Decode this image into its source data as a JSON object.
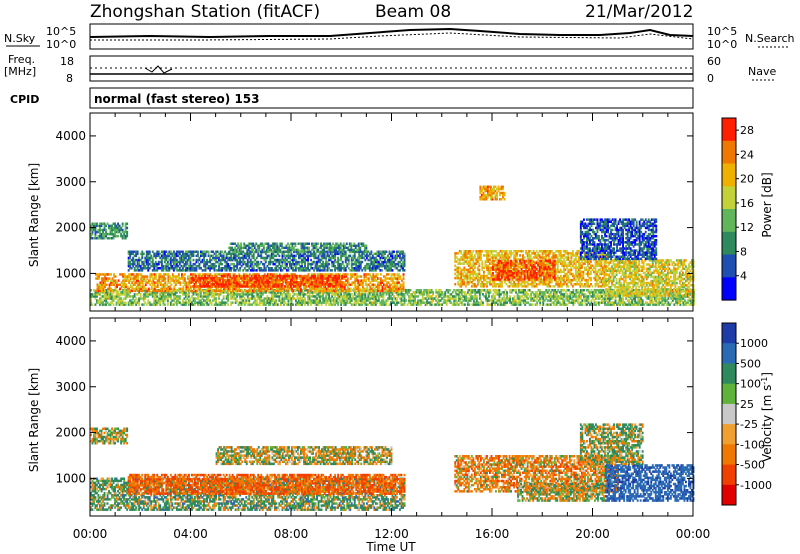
{
  "header": {
    "station": "Zhongshan Station (fitACF)",
    "beam": "Beam 08",
    "date": "21/Mar/2012"
  },
  "strip": {
    "nsky_label": "N.Sky",
    "nsearch_label": "N.Search",
    "noise_ticks_top": "10^5",
    "noise_ticks_bottom": "10^0",
    "freq_label": "Freq.",
    "freq_unit": "[MHz]",
    "freq_ticks": [
      "18",
      "8"
    ],
    "nave_label": "Nave",
    "nave_ticks": [
      "60",
      "0"
    ],
    "cpid_label": "CPID",
    "cpid_text": "normal (fast stereo) 153"
  },
  "chart_data": [
    {
      "type": "heatmap",
      "name": "power",
      "xlabel": "Time UT",
      "ylabel": "Slant Range [km]",
      "xlim_hours": [
        0,
        24
      ],
      "x_ticks": [
        "00:00",
        "04:00",
        "08:00",
        "12:00",
        "16:00",
        "20:00",
        "00:00"
      ],
      "ylim": [
        180,
        4500
      ],
      "y_ticks": [
        1000,
        2000,
        3000,
        4000
      ],
      "colorbar": {
        "label": "Power [dB]",
        "ticks": [
          4,
          8,
          12,
          16,
          20,
          24,
          28
        ],
        "range": [
          0,
          30
        ],
        "colors": [
          "#0000ff",
          "#1f4fb0",
          "#2e8a5c",
          "#61b65c",
          "#c4d23a",
          "#f0b000",
          "#f07800",
          "#ff2000"
        ]
      },
      "regions": [
        {
          "t": [
            0.0,
            1.5
          ],
          "r": [
            1750,
            2100
          ],
          "v": 10
        },
        {
          "t": [
            0.0,
            24.0
          ],
          "r": [
            300,
            650
          ],
          "v": 14
        },
        {
          "t": [
            0.2,
            12.5
          ],
          "r": [
            600,
            1000
          ],
          "v": 22
        },
        {
          "t": [
            4.0,
            10.0
          ],
          "r": [
            700,
            950
          ],
          "v": 27
        },
        {
          "t": [
            1.5,
            12.5
          ],
          "r": [
            1050,
            1500
          ],
          "v": 8
        },
        {
          "t": [
            5.5,
            11.0
          ],
          "r": [
            1450,
            1650
          ],
          "v": 10
        },
        {
          "t": [
            14.5,
            20.5
          ],
          "r": [
            700,
            1500
          ],
          "v": 20
        },
        {
          "t": [
            16.0,
            18.5
          ],
          "r": [
            850,
            1300
          ],
          "v": 27
        },
        {
          "t": [
            20.5,
            24.0
          ],
          "r": [
            500,
            1300
          ],
          "v": 18
        },
        {
          "t": [
            19.5,
            22.5
          ],
          "r": [
            1300,
            2200
          ],
          "v": 6
        },
        {
          "t": [
            15.5,
            16.5
          ],
          "r": [
            2600,
            2900
          ],
          "v": 22
        }
      ]
    },
    {
      "type": "heatmap",
      "name": "velocity",
      "xlabel": "Time UT",
      "ylabel": "Slant Range [km]",
      "xlim_hours": [
        0,
        24
      ],
      "x_ticks": [
        "00:00",
        "04:00",
        "08:00",
        "12:00",
        "16:00",
        "20:00",
        "00:00"
      ],
      "ylim": [
        180,
        4500
      ],
      "y_ticks": [
        1000,
        2000,
        3000,
        4000
      ],
      "colorbar": {
        "label": "Velocity [m s^-1]",
        "ticks": [
          "1000",
          "500",
          "100",
          "25",
          "-25",
          "-100",
          "-500",
          "-1000"
        ],
        "colors": [
          "#1e3ca8",
          "#2a6ab4",
          "#2e8a5c",
          "#60b33a",
          "#c8c8c8",
          "#f0a030",
          "#f07800",
          "#f04000",
          "#e00000"
        ]
      },
      "regions": [
        {
          "t": [
            0.0,
            1.5
          ],
          "r": [
            1750,
            2100
          ],
          "v": 25
        },
        {
          "t": [
            0.0,
            12.5
          ],
          "r": [
            300,
            1000
          ],
          "v": 100
        },
        {
          "t": [
            1.5,
            12.5
          ],
          "r": [
            650,
            1100
          ],
          "v": -300
        },
        {
          "t": [
            5.0,
            12.0
          ],
          "r": [
            1300,
            1700
          ],
          "v": 0
        },
        {
          "t": [
            14.5,
            21.0
          ],
          "r": [
            700,
            1500
          ],
          "v": -150
        },
        {
          "t": [
            17.0,
            20.5
          ],
          "r": [
            500,
            900
          ],
          "v": 0
        },
        {
          "t": [
            20.5,
            24.0
          ],
          "r": [
            500,
            1300
          ],
          "v": 600
        },
        {
          "t": [
            19.5,
            22.0
          ],
          "r": [
            1300,
            2200
          ],
          "v": 50
        }
      ]
    }
  ]
}
